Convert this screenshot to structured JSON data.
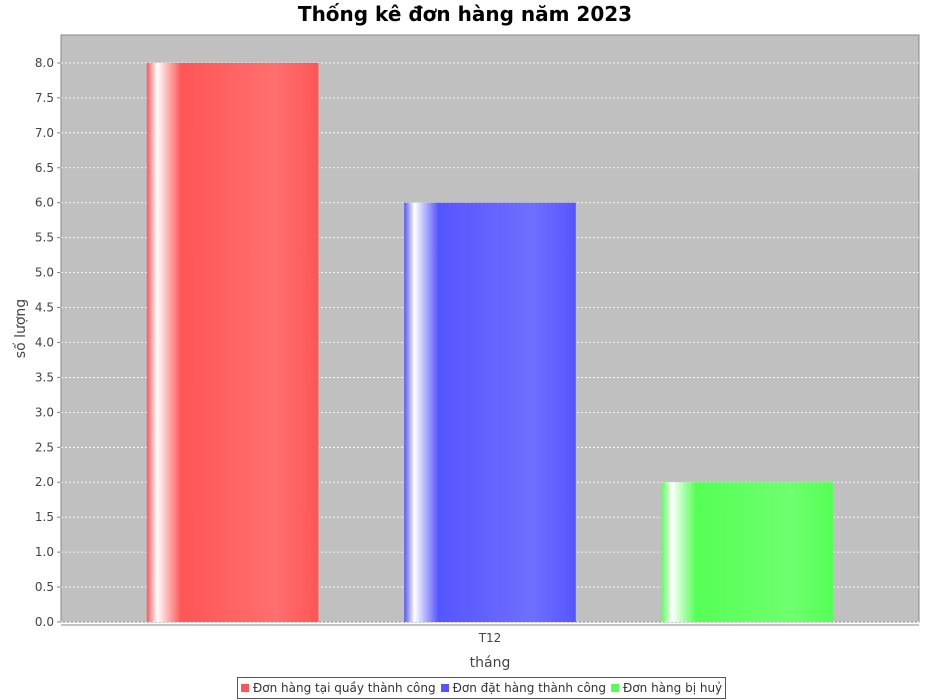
{
  "chart_data": {
    "type": "bar",
    "title": "Thống kê đơn hàng năm 2023",
    "xlabel": "tháng",
    "ylabel": "số lượng",
    "categories": [
      "T12"
    ],
    "series": [
      {
        "name": "Đơn hàng tại quầy thành công",
        "values": [
          8.0
        ],
        "color": "#ff5555"
      },
      {
        "name": "Đơn đặt hàng thành công",
        "values": [
          6.0
        ],
        "color": "#5555ff"
      },
      {
        "name": "Đơn hàng bị huỷ",
        "values": [
          2.0
        ],
        "color": "#55ff55"
      }
    ],
    "ylim": [
      0,
      8.4
    ],
    "yticks": [
      "0.0",
      "0.5",
      "1.0",
      "1.5",
      "2.0",
      "2.5",
      "3.0",
      "3.5",
      "4.0",
      "4.5",
      "5.0",
      "5.5",
      "6.0",
      "6.5",
      "7.0",
      "7.5",
      "8.0"
    ],
    "grid": true,
    "legend": "bottom",
    "plot_background": "#c0c0c0"
  }
}
